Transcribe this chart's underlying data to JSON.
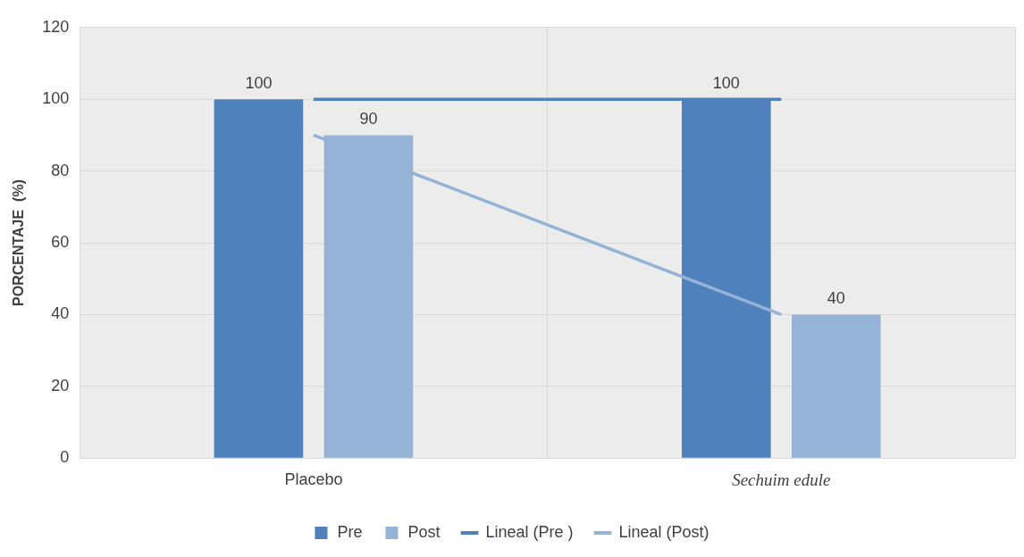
{
  "chart_data": {
    "type": "bar",
    "ylabel": "PORCENTAJE  (%)",
    "categories": [
      "Placebo",
      "Sechuim edule"
    ],
    "series": [
      {
        "name": "Pre",
        "color": "#4f81bd",
        "values": [
          100,
          100
        ],
        "value_labels": [
          "100",
          "100"
        ]
      },
      {
        "name": "Post",
        "color": "#95b3d7",
        "values": [
          90,
          40
        ],
        "value_labels": [
          "90",
          "40"
        ]
      },
      {
        "name": "Lineal (Pre )",
        "type": "line",
        "color": "#4f81bd",
        "values": [
          100,
          100
        ]
      },
      {
        "name": "Lineal (Post)",
        "type": "line",
        "color": "#95b3d7",
        "values": [
          90,
          40
        ]
      }
    ],
    "ylim": [
      0,
      120
    ],
    "yticks": [
      0,
      20,
      40,
      60,
      80,
      100,
      120
    ],
    "grid": true,
    "legend": "bottom",
    "marker": "none"
  }
}
